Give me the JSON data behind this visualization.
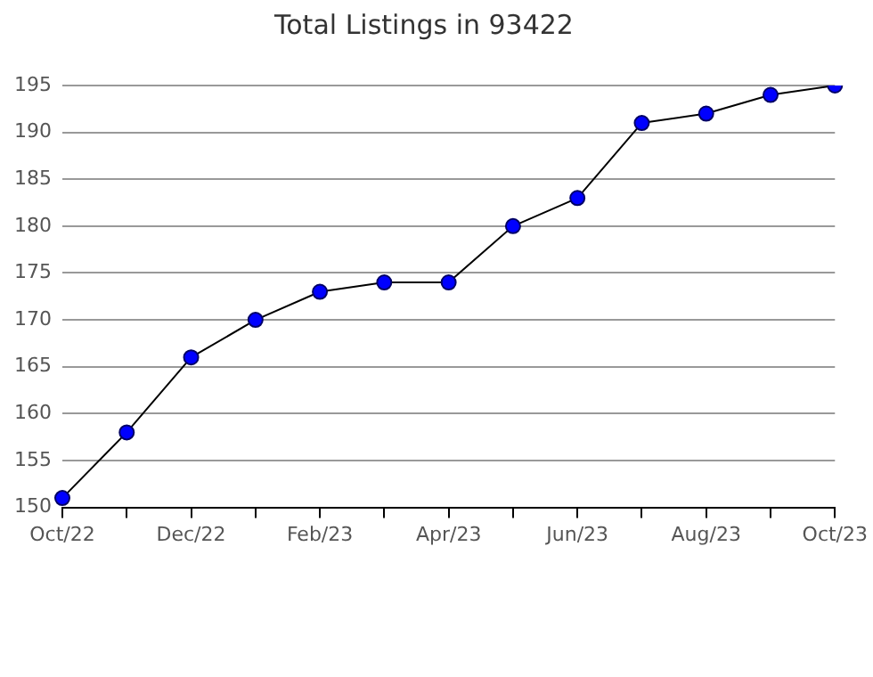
{
  "chart_data": {
    "type": "line",
    "title": "Total Listings in 93422",
    "categories": [
      "Oct/22",
      null,
      "Dec/22",
      null,
      "Feb/23",
      null,
      "Apr/23",
      null,
      "Jun/23",
      null,
      "Aug/23",
      null,
      "Oct/23"
    ],
    "series": [
      {
        "color": "#0000ff",
        "values": [
          151,
          158,
          166,
          170,
          173,
          174,
          174,
          180,
          183,
          191,
          192,
          194,
          195
        ]
      }
    ],
    "ylim": [
      150,
      195
    ],
    "yticks": [
      150,
      155,
      160,
      165,
      170,
      175,
      180,
      185,
      190,
      195
    ],
    "grid": "y",
    "marker": "circle",
    "line_style": "solid",
    "legend": false
  }
}
